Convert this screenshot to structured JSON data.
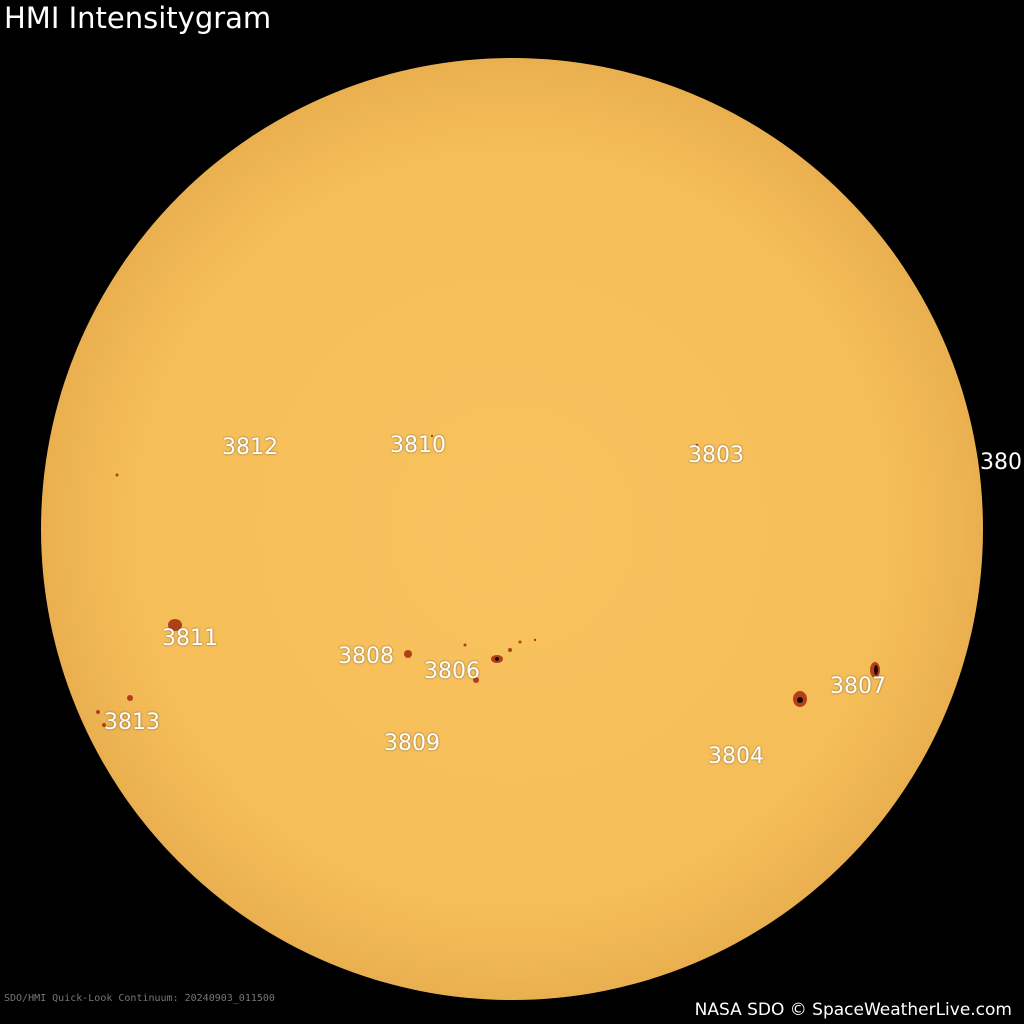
{
  "header": {
    "title": "HMI Intensitygram"
  },
  "regions": [
    "3812",
    "3810",
    "3803",
    "380",
    "3811",
    "3808",
    "3806",
    "3807",
    "3813",
    "3809",
    "3804"
  ],
  "footer": {
    "source": "SDO/HMI Quick-Look Continuum: 20240903_011500",
    "credit": "NASA SDO © SpaceWeatherLive.com"
  }
}
